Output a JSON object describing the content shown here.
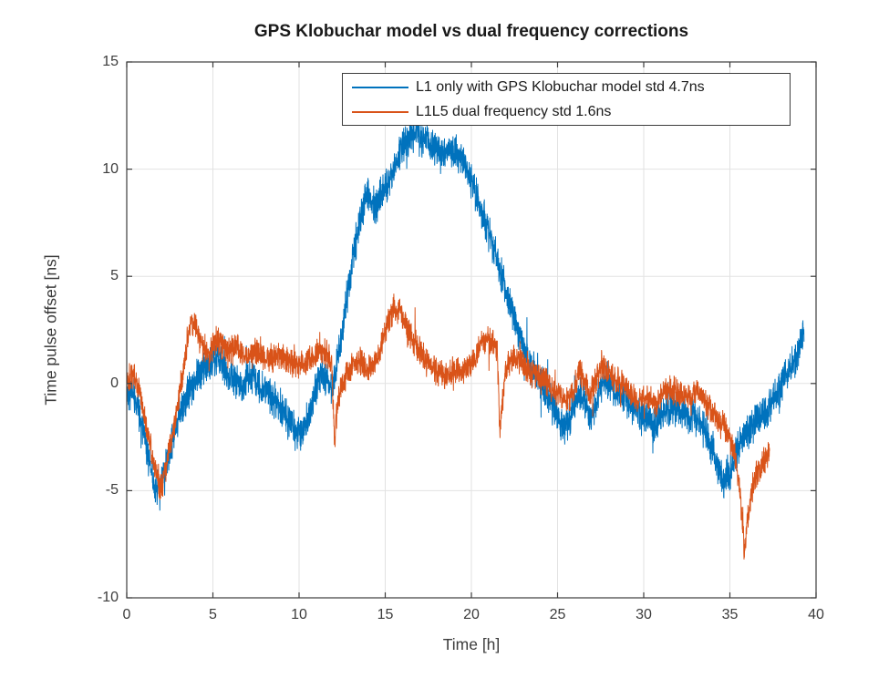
{
  "title": "GPS Klobuchar model vs dual frequency corrections",
  "chart_data": {
    "type": "line",
    "title": "GPS Klobuchar model vs dual frequency corrections",
    "xlabel": "Time [h]",
    "ylabel": "Time pulse offset [ns]",
    "xlim": [
      0,
      40
    ],
    "ylim": [
      -10,
      15
    ],
    "xticks": [
      0,
      5,
      10,
      15,
      20,
      25,
      30,
      35,
      40
    ],
    "yticks": [
      -10,
      -5,
      0,
      5,
      10,
      15
    ],
    "grid": true,
    "grid_color": "#e2e2e2",
    "axis_color": "#3c3c3c",
    "legend_position": "north-inside",
    "series": [
      {
        "name": "L1 only with GPS Klobuchar model std 4.7ns",
        "color": "#0072BD",
        "std_ns": 4.7,
        "noise_amplitude": 0.7,
        "anchors": [
          [
            0,
            -0.3
          ],
          [
            0.4,
            -0.5
          ],
          [
            0.8,
            -1.6
          ],
          [
            1.2,
            -3.2
          ],
          [
            1.7,
            -5.2
          ],
          [
            2.0,
            -4.6
          ],
          [
            2.4,
            -3.4
          ],
          [
            3.0,
            -1.6
          ],
          [
            3.6,
            -0.4
          ],
          [
            4.2,
            0.5
          ],
          [
            4.8,
            1.0
          ],
          [
            5.3,
            1.2
          ],
          [
            5.8,
            0.5
          ],
          [
            6.3,
            0.1
          ],
          [
            6.8,
            -0.1
          ],
          [
            7.3,
            0.4
          ],
          [
            7.8,
            -0.2
          ],
          [
            8.3,
            -0.5
          ],
          [
            8.8,
            -1.0
          ],
          [
            9.3,
            -1.7
          ],
          [
            9.8,
            -2.3
          ],
          [
            10.2,
            -2.3
          ],
          [
            10.6,
            -1.4
          ],
          [
            11.0,
            -0.2
          ],
          [
            11.3,
            0.5
          ],
          [
            11.6,
            0.2
          ],
          [
            11.9,
            -0.4
          ],
          [
            12.1,
            0.3
          ],
          [
            12.4,
            2.0
          ],
          [
            12.8,
            4.2
          ],
          [
            13.2,
            6.2
          ],
          [
            13.6,
            7.9
          ],
          [
            13.9,
            8.7
          ],
          [
            14.2,
            8.6
          ],
          [
            14.5,
            8.3
          ],
          [
            14.8,
            8.9
          ],
          [
            15.2,
            9.5
          ],
          [
            15.6,
            10.2
          ],
          [
            16.0,
            10.9
          ],
          [
            16.4,
            11.5
          ],
          [
            16.8,
            11.7
          ],
          [
            17.1,
            11.3
          ],
          [
            17.4,
            11.5
          ],
          [
            17.8,
            11.1
          ],
          [
            18.2,
            10.8
          ],
          [
            18.6,
            10.9
          ],
          [
            19.0,
            10.8
          ],
          [
            19.4,
            10.6
          ],
          [
            19.8,
            9.9
          ],
          [
            20.2,
            9.0
          ],
          [
            20.6,
            8.0
          ],
          [
            21.0,
            7.0
          ],
          [
            21.4,
            6.0
          ],
          [
            21.8,
            5.0
          ],
          [
            22.2,
            3.9
          ],
          [
            22.6,
            2.8
          ],
          [
            23.0,
            1.7
          ],
          [
            23.4,
            0.9
          ],
          [
            23.8,
            0.4
          ],
          [
            24.2,
            -0.2
          ],
          [
            24.6,
            -0.7
          ],
          [
            25.0,
            -1.4
          ],
          [
            25.3,
            -2.2
          ],
          [
            25.6,
            -1.8
          ],
          [
            26.0,
            -0.9
          ],
          [
            26.3,
            -0.5
          ],
          [
            26.6,
            -1.0
          ],
          [
            26.9,
            -1.5
          ],
          [
            27.2,
            -1.0
          ],
          [
            27.5,
            -0.2
          ],
          [
            27.8,
            0.3
          ],
          [
            28.1,
            -0.2
          ],
          [
            28.5,
            -0.5
          ],
          [
            28.9,
            -0.7
          ],
          [
            29.3,
            -1.1
          ],
          [
            29.7,
            -1.4
          ],
          [
            30.1,
            -1.6
          ],
          [
            30.5,
            -2.1
          ],
          [
            30.9,
            -1.7
          ],
          [
            31.3,
            -1.2
          ],
          [
            31.7,
            -1.1
          ],
          [
            32.1,
            -1.3
          ],
          [
            32.5,
            -1.4
          ],
          [
            33.0,
            -1.6
          ],
          [
            33.5,
            -2.1
          ],
          [
            34.0,
            -3.1
          ],
          [
            34.4,
            -4.2
          ],
          [
            34.7,
            -4.7
          ],
          [
            35.0,
            -4.3
          ],
          [
            35.4,
            -3.2
          ],
          [
            35.8,
            -2.5
          ],
          [
            36.2,
            -2.2
          ],
          [
            36.6,
            -1.7
          ],
          [
            37.0,
            -1.3
          ],
          [
            37.4,
            -1.0
          ],
          [
            37.8,
            -0.4
          ],
          [
            38.2,
            0.2
          ],
          [
            38.6,
            0.8
          ],
          [
            39.0,
            1.6
          ],
          [
            39.3,
            2.6
          ]
        ]
      },
      {
        "name": "L1L5 dual frequency std 1.6ns",
        "color": "#D95319",
        "std_ns": 1.6,
        "noise_amplitude": 0.55,
        "anchors": [
          [
            0,
            0.2
          ],
          [
            0.4,
            0.5
          ],
          [
            0.8,
            -0.6
          ],
          [
            1.2,
            -2.2
          ],
          [
            1.6,
            -3.8
          ],
          [
            1.9,
            -5.0
          ],
          [
            2.2,
            -4.3
          ],
          [
            2.6,
            -2.6
          ],
          [
            3.0,
            -0.8
          ],
          [
            3.4,
            1.4
          ],
          [
            3.7,
            2.9
          ],
          [
            4.0,
            2.6
          ],
          [
            4.4,
            1.8
          ],
          [
            4.8,
            1.5
          ],
          [
            5.2,
            2.1
          ],
          [
            5.6,
            1.7
          ],
          [
            6.0,
            1.6
          ],
          [
            6.4,
            1.8
          ],
          [
            6.8,
            1.3
          ],
          [
            7.2,
            1.2
          ],
          [
            7.6,
            1.6
          ],
          [
            8.0,
            1.4
          ],
          [
            8.4,
            1.1
          ],
          [
            8.8,
            1.4
          ],
          [
            9.2,
            1.2
          ],
          [
            9.6,
            0.9
          ],
          [
            10.0,
            0.9
          ],
          [
            10.4,
            1.0
          ],
          [
            10.8,
            1.3
          ],
          [
            11.2,
            1.5
          ],
          [
            11.6,
            1.4
          ],
          [
            11.9,
            0.8
          ],
          [
            12.05,
            -2.7
          ],
          [
            12.2,
            -1.2
          ],
          [
            12.4,
            -0.2
          ],
          [
            12.7,
            0.4
          ],
          [
            13.0,
            0.6
          ],
          [
            13.3,
            1.2
          ],
          [
            13.6,
            1.0
          ],
          [
            13.9,
            0.7
          ],
          [
            14.2,
            0.8
          ],
          [
            14.6,
            1.3
          ],
          [
            15.0,
            2.4
          ],
          [
            15.4,
            3.3
          ],
          [
            15.8,
            3.5
          ],
          [
            16.1,
            2.9
          ],
          [
            16.5,
            2.2
          ],
          [
            16.9,
            1.7
          ],
          [
            17.3,
            1.1
          ],
          [
            17.7,
            0.8
          ],
          [
            18.1,
            0.5
          ],
          [
            18.5,
            0.3
          ],
          [
            18.9,
            0.6
          ],
          [
            19.3,
            0.6
          ],
          [
            19.7,
            0.7
          ],
          [
            20.1,
            1.0
          ],
          [
            20.5,
            1.9
          ],
          [
            20.9,
            2.1
          ],
          [
            21.3,
            1.9
          ],
          [
            21.5,
            1.6
          ],
          [
            21.65,
            -2.1
          ],
          [
            21.8,
            -0.8
          ],
          [
            22.0,
            0.6
          ],
          [
            22.3,
            1.2
          ],
          [
            22.7,
            1.1
          ],
          [
            23.1,
            0.8
          ],
          [
            23.5,
            0.5
          ],
          [
            23.9,
            0.3
          ],
          [
            24.3,
            0.1
          ],
          [
            24.7,
            -0.3
          ],
          [
            25.1,
            -0.5
          ],
          [
            25.5,
            -0.9
          ],
          [
            25.9,
            -0.4
          ],
          [
            26.3,
            0.7
          ],
          [
            26.6,
            0.1
          ],
          [
            26.9,
            -0.5
          ],
          [
            27.2,
            0.1
          ],
          [
            27.6,
            0.9
          ],
          [
            27.9,
            0.6
          ],
          [
            28.3,
            0.2
          ],
          [
            28.7,
            0.1
          ],
          [
            29.1,
            -0.3
          ],
          [
            29.5,
            -0.8
          ],
          [
            29.9,
            -0.7
          ],
          [
            30.3,
            -0.7
          ],
          [
            30.7,
            -0.9
          ],
          [
            31.1,
            -0.4
          ],
          [
            31.5,
            -0.3
          ],
          [
            31.9,
            -0.4
          ],
          [
            32.3,
            -0.6
          ],
          [
            32.7,
            -0.7
          ],
          [
            33.1,
            -0.4
          ],
          [
            33.5,
            -0.8
          ],
          [
            33.9,
            -1.3
          ],
          [
            34.3,
            -1.7
          ],
          [
            34.7,
            -2.1
          ],
          [
            35.0,
            -2.6
          ],
          [
            35.3,
            -3.4
          ],
          [
            35.6,
            -5.2
          ],
          [
            35.85,
            -7.8
          ],
          [
            36.0,
            -6.5
          ],
          [
            36.2,
            -5.2
          ],
          [
            36.5,
            -4.3
          ],
          [
            36.8,
            -3.8
          ],
          [
            37.1,
            -3.4
          ],
          [
            37.3,
            -3.2
          ]
        ]
      }
    ]
  }
}
